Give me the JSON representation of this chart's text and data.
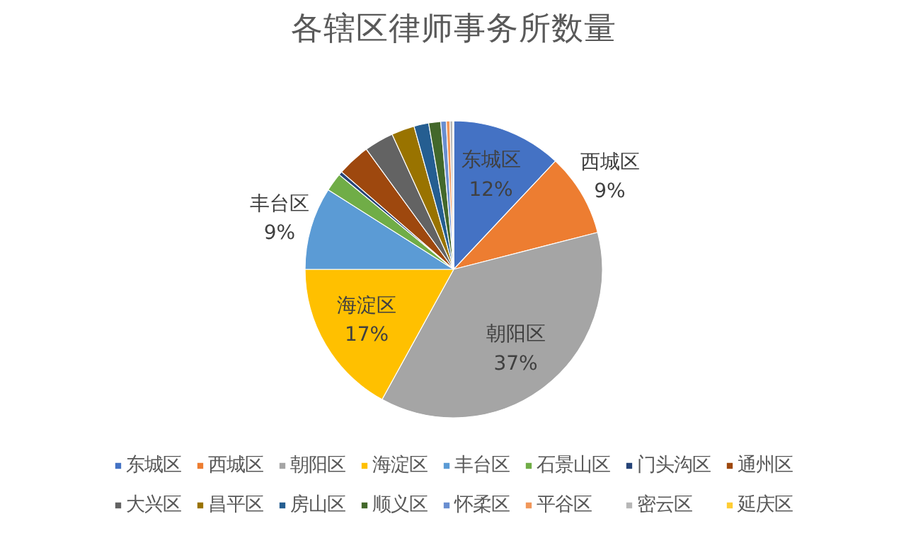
{
  "chart_data": {
    "type": "pie",
    "title": "各辖区律师事务所数量",
    "categories": [
      "东城区",
      "西城区",
      "朝阳区",
      "海淀区",
      "丰台区",
      "石景山区",
      "门头沟区",
      "通州区",
      "大兴区",
      "昌平区",
      "房山区",
      "顺义区",
      "怀柔区",
      "平谷区",
      "密云区",
      "延庆区"
    ],
    "values": [
      12,
      9,
      37,
      17,
      9,
      2,
      0.4,
      3.6,
      3.2,
      2.5,
      1.6,
      1.3,
      0.6,
      0.4,
      0.3,
      0.1
    ],
    "value_labels": [
      "12%",
      "9%",
      "37%",
      "17%",
      "9%",
      null,
      null,
      null,
      null,
      null,
      null,
      null,
      null,
      null,
      null,
      null
    ],
    "colors": [
      "#4472c4",
      "#ed7d31",
      "#a5a5a5",
      "#ffc000",
      "#5b9bd5",
      "#70ad47",
      "#264478",
      "#9e480e",
      "#636363",
      "#997300",
      "#255e91",
      "#43682b",
      "#698ed0",
      "#f1975a",
      "#b7b7b7",
      "#ffcd33"
    ],
    "legend": "bottom"
  }
}
